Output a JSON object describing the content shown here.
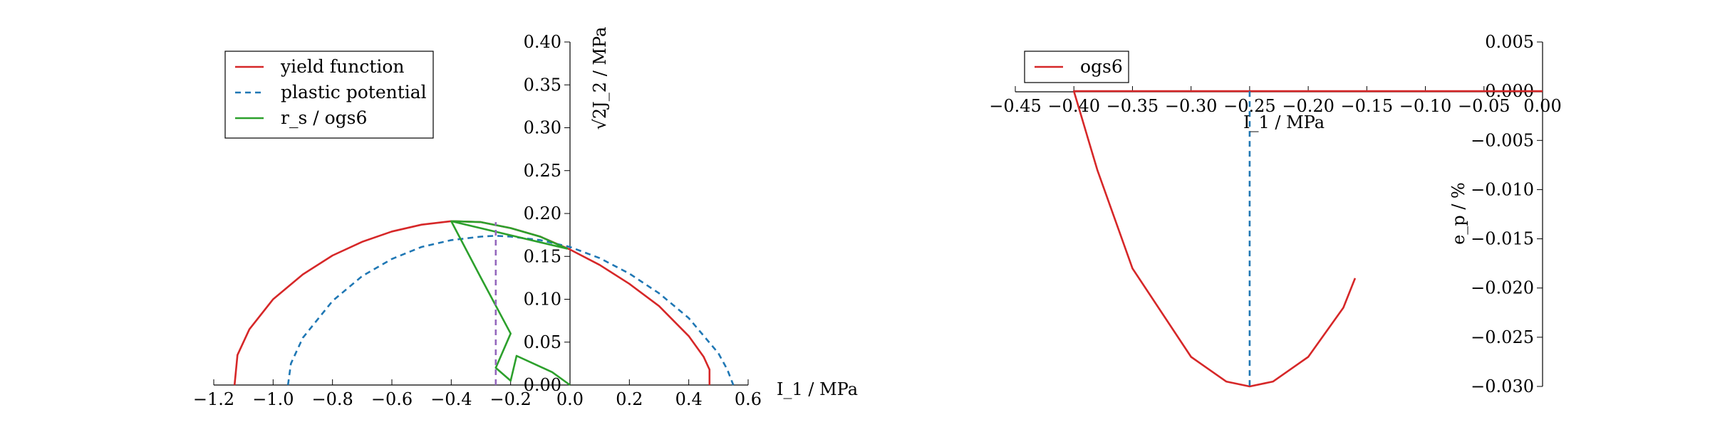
{
  "chart_data": [
    {
      "type": "line",
      "xlabel": "I_1 / MPa",
      "ylabel": "√2J_2 / MPa",
      "xlim": [
        -1.2,
        0.6
      ],
      "ylim": [
        0.0,
        0.4
      ],
      "xticks": [
        "−1.2",
        "−1.0",
        "−0.8",
        "−0.6",
        "−0.4",
        "−0.2",
        "0.0",
        "0.2",
        "0.4",
        "0.6"
      ],
      "yticks": [
        "0.00",
        "0.05",
        "0.10",
        "0.15",
        "0.20",
        "0.25",
        "0.30",
        "0.35",
        "0.40"
      ],
      "grid": false,
      "legend_position": "top-left",
      "series": [
        {
          "name": "yield function",
          "color": "#d62728",
          "style": "solid",
          "x": [
            -1.13,
            -1.12,
            -1.08,
            -1.0,
            -0.9,
            -0.8,
            -0.7,
            -0.6,
            -0.5,
            -0.4,
            -0.3,
            -0.2,
            -0.1,
            0.0,
            0.1,
            0.2,
            0.3,
            0.4,
            0.45,
            0.47,
            0.47
          ],
          "y": [
            0.0,
            0.035,
            0.065,
            0.1,
            0.129,
            0.151,
            0.167,
            0.179,
            0.187,
            0.191,
            0.19,
            0.183,
            0.173,
            0.158,
            0.14,
            0.118,
            0.092,
            0.057,
            0.033,
            0.018,
            0.0
          ]
        },
        {
          "name": "plastic potential",
          "color": "#1f77b4",
          "style": "dashed",
          "x": [
            -0.95,
            -0.94,
            -0.9,
            -0.8,
            -0.7,
            -0.6,
            -0.5,
            -0.4,
            -0.3,
            -0.25,
            -0.2,
            -0.1,
            0.0,
            0.1,
            0.2,
            0.3,
            0.4,
            0.5,
            0.53,
            0.55
          ],
          "y": [
            0.0,
            0.025,
            0.055,
            0.098,
            0.127,
            0.147,
            0.161,
            0.169,
            0.173,
            0.174,
            0.173,
            0.169,
            0.161,
            0.148,
            0.13,
            0.107,
            0.078,
            0.037,
            0.018,
            0.0
          ]
        },
        {
          "name": "r_s / ogs6",
          "color": "#2ca02c",
          "style": "solid",
          "x": [
            -0.4,
            -0.3,
            -0.2,
            -0.1,
            -0.01,
            -0.4,
            -0.3,
            -0.2,
            -0.25,
            -0.2,
            -0.18,
            -0.06,
            0.0
          ],
          "y": [
            0.191,
            0.19,
            0.183,
            0.173,
            0.159,
            0.191,
            0.125,
            0.06,
            0.02,
            0.005,
            0.034,
            0.015,
            0.0
          ]
        },
        {
          "name": "",
          "color": "#9467bd",
          "style": "dashed",
          "x": [
            -0.25,
            -0.25
          ],
          "y": [
            0.0,
            0.19
          ]
        }
      ]
    },
    {
      "type": "line",
      "xlabel": "I_1 / MPa",
      "ylabel": "e_p / %",
      "xlim": [
        -0.45,
        0.0
      ],
      "ylim": [
        -0.03,
        0.005
      ],
      "xticks": [
        "−0.45",
        "−0.40",
        "−0.35",
        "−0.30",
        "−0.25",
        "−0.20",
        "−0.15",
        "−0.10",
        "−0.05",
        "0.00"
      ],
      "yticks": [
        "−0.030",
        "−0.025",
        "−0.020",
        "−0.015",
        "−0.010",
        "−0.005",
        "0.000",
        "0.005"
      ],
      "grid": false,
      "legend_position": "top-left",
      "series": [
        {
          "name": "ogs6",
          "color": "#d62728",
          "style": "solid",
          "x": [
            0.0,
            -0.05,
            -0.1,
            -0.15,
            -0.2,
            -0.25,
            -0.3,
            -0.35,
            -0.39,
            -0.395,
            -0.4,
            -0.38,
            -0.35,
            -0.3,
            -0.27,
            -0.25,
            -0.23,
            -0.2,
            -0.17,
            -0.16
          ],
          "y": [
            0.0,
            0.0,
            0.0,
            0.0,
            0.0,
            0.0,
            0.0,
            0.0,
            0.0,
            0.0,
            0.0,
            -0.008,
            -0.018,
            -0.027,
            -0.0295,
            -0.03,
            -0.0295,
            -0.027,
            -0.022,
            -0.019
          ]
        },
        {
          "name": "",
          "color": "#1f77b4",
          "style": "dashed",
          "x": [
            -0.25,
            -0.25
          ],
          "y": [
            0.0,
            -0.03
          ]
        }
      ]
    }
  ]
}
